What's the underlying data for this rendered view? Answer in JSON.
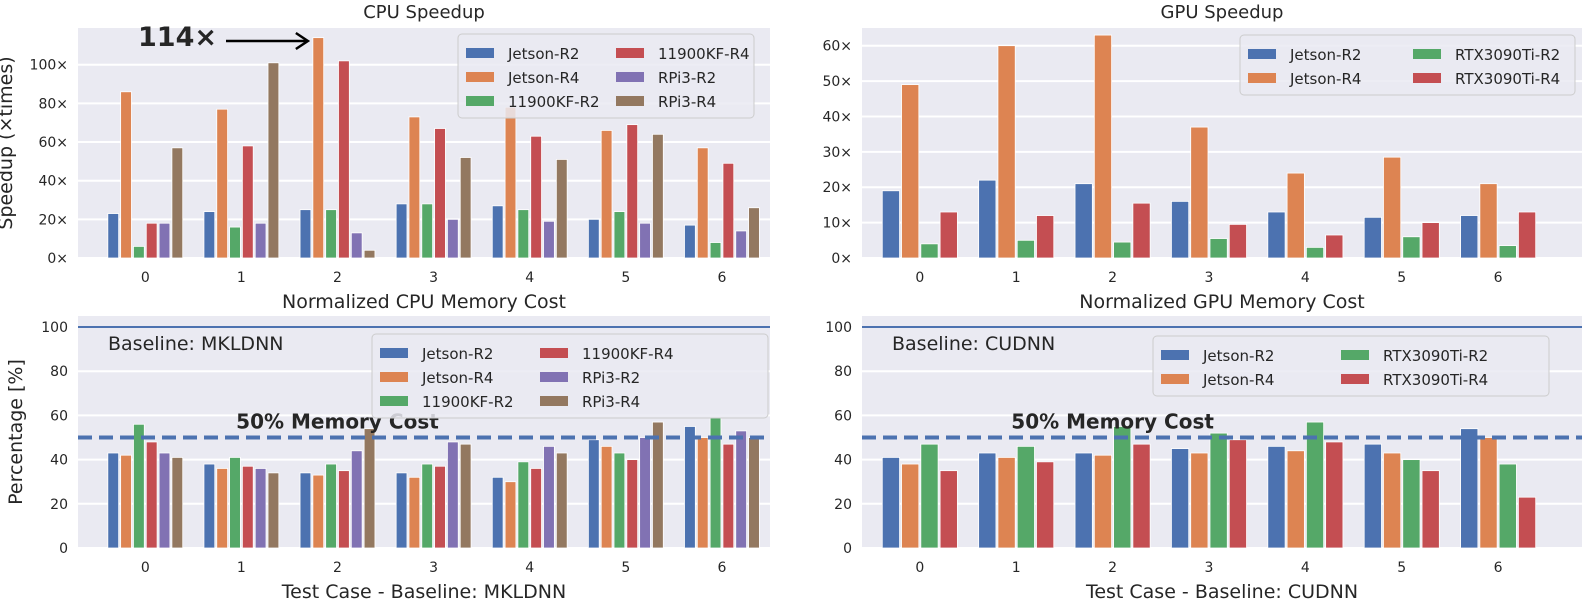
{
  "colors": {
    "Jetson-R2": "#4c72b0",
    "Jetson-R4": "#dd8452",
    "11900KF-R2": "#55a868",
    "11900KF-R4": "#c44e52",
    "RPi3-R2": "#8172b3",
    "RPi3-R4": "#937860",
    "RTX3090Ti-R2": "#55a868",
    "RTX3090Ti-R4": "#c44e52",
    "background": "#eaeaf2",
    "grid": "#ffffff",
    "reference_line": "#4c72b0"
  },
  "chart_data": [
    {
      "type": "bar",
      "title": "CPU Speedup",
      "xlabel": "Normalized CPU Memory Cost",
      "ylabel": "Speedup (×times)",
      "categories": [
        "0",
        "1",
        "2",
        "3",
        "4",
        "5",
        "6"
      ],
      "yticks": [
        "0×",
        "20×",
        "40×",
        "60×",
        "80×",
        "100×"
      ],
      "ytick_values": [
        0,
        20,
        40,
        60,
        80,
        100
      ],
      "ylim": [
        0,
        119
      ],
      "xlim": [
        -0.7,
        6.5
      ],
      "grid": true,
      "legend": "top-right",
      "legend_columns": 2,
      "annotation": {
        "text": "114×",
        "points_to": {
          "category": "2",
          "series": "Jetson-R4",
          "value": 114
        }
      },
      "series": [
        {
          "name": "Jetson-R2",
          "values": [
            23,
            24,
            25,
            28,
            27,
            20,
            17
          ]
        },
        {
          "name": "Jetson-R4",
          "values": [
            86,
            77,
            114,
            73,
            78,
            66,
            57
          ]
        },
        {
          "name": "11900KF-R2",
          "values": [
            6,
            16,
            25,
            28,
            25,
            24,
            8
          ]
        },
        {
          "name": "11900KF-R4",
          "values": [
            18,
            58,
            102,
            67,
            63,
            69,
            49
          ]
        },
        {
          "name": "RPi3-R2",
          "values": [
            18,
            18,
            13,
            20,
            19,
            18,
            14
          ]
        },
        {
          "name": "RPi3-R4",
          "values": [
            57,
            101,
            4,
            52,
            51,
            64,
            26
          ]
        }
      ]
    },
    {
      "type": "bar",
      "title": "GPU Speedup",
      "xlabel": "Normalized GPU Memory Cost",
      "ylabel": "",
      "categories": [
        "0",
        "1",
        "2",
        "3",
        "4",
        "5",
        "6"
      ],
      "yticks": [
        "0×",
        "10×",
        "20×",
        "30×",
        "40×",
        "50×",
        "60×"
      ],
      "ytick_values": [
        0,
        10,
        20,
        30,
        40,
        50,
        60
      ],
      "ylim": [
        0,
        65
      ],
      "xlim": [
        -0.6,
        6.87
      ],
      "grid": true,
      "legend": "top-right",
      "legend_columns": 2,
      "series": [
        {
          "name": "Jetson-R2",
          "values": [
            19,
            22,
            21,
            16,
            13,
            11.5,
            12
          ]
        },
        {
          "name": "Jetson-R4",
          "values": [
            49,
            60,
            63,
            37,
            24,
            28.5,
            21
          ]
        },
        {
          "name": "RTX3090Ti-R2",
          "values": [
            4,
            5,
            4.5,
            5.5,
            3,
            6,
            3.5
          ]
        },
        {
          "name": "RTX3090Ti-R4",
          "values": [
            13,
            12,
            15.5,
            9.5,
            6.5,
            10,
            13
          ]
        }
      ]
    },
    {
      "type": "bar",
      "title": "",
      "xlabel": "Test Case - Baseline: MKLDNN",
      "ylabel": "Percentage [%]",
      "categories": [
        "0",
        "1",
        "2",
        "3",
        "4",
        "5",
        "6"
      ],
      "yticks": [
        "0",
        "20",
        "40",
        "60",
        "80",
        "100"
      ],
      "ytick_values": [
        0,
        20,
        40,
        60,
        80,
        100
      ],
      "ylim": [
        0,
        105
      ],
      "xlim": [
        -0.7,
        6.5
      ],
      "grid": true,
      "legend": "top-right",
      "legend_columns": 2,
      "text_label": "Baseline: MKLDNN",
      "reference_lines": [
        {
          "value": 100,
          "style": "solid"
        },
        {
          "value": 50,
          "style": "dashed",
          "label": "50% Memory Cost"
        }
      ],
      "series": [
        {
          "name": "Jetson-R2",
          "values": [
            43,
            38,
            34,
            34,
            32,
            49,
            55
          ]
        },
        {
          "name": "Jetson-R4",
          "values": [
            42,
            36,
            33,
            32,
            30,
            46,
            50
          ]
        },
        {
          "name": "11900KF-R2",
          "values": [
            56,
            41,
            38,
            38,
            39,
            43,
            59
          ]
        },
        {
          "name": "11900KF-R4",
          "values": [
            48,
            37,
            35,
            37,
            36,
            40,
            47
          ]
        },
        {
          "name": "RPi3-R2",
          "values": [
            43,
            36,
            44,
            48,
            46,
            50,
            53
          ]
        },
        {
          "name": "RPi3-R4",
          "values": [
            41,
            34,
            54,
            47,
            43,
            57,
            50
          ]
        }
      ]
    },
    {
      "type": "bar",
      "title": "",
      "xlabel": "Test Case - Baseline: CUDNN",
      "ylabel": "",
      "categories": [
        "0",
        "1",
        "2",
        "3",
        "4",
        "5",
        "6"
      ],
      "yticks": [
        "0",
        "20",
        "40",
        "60",
        "80",
        "100"
      ],
      "ytick_values": [
        0,
        20,
        40,
        60,
        80,
        100
      ],
      "ylim": [
        0,
        105
      ],
      "xlim": [
        -0.6,
        6.87
      ],
      "grid": true,
      "legend": "top-right",
      "legend_columns": 2,
      "text_label": "Baseline: CUDNN",
      "reference_lines": [
        {
          "value": 100,
          "style": "solid"
        },
        {
          "value": 50,
          "style": "dashed",
          "label": "50% Memory Cost"
        }
      ],
      "series": [
        {
          "name": "Jetson-R2",
          "values": [
            41,
            43,
            43,
            45,
            46,
            47,
            54
          ]
        },
        {
          "name": "Jetson-R4",
          "values": [
            38,
            41,
            42,
            43,
            44,
            43,
            50
          ]
        },
        {
          "name": "RTX3090Ti-R2",
          "values": [
            47,
            46,
            55,
            52,
            57,
            40,
            38
          ]
        },
        {
          "name": "RTX3090Ti-R4",
          "values": [
            35,
            39,
            47,
            49,
            48,
            35,
            23
          ]
        }
      ]
    }
  ]
}
